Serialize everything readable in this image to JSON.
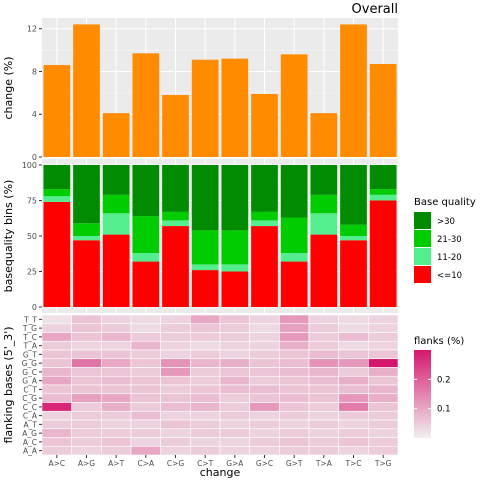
{
  "chart_data": [
    {
      "type": "bar",
      "title": "Overall",
      "xlabel": "",
      "ylabel": "change (%)",
      "ylim": [
        0,
        13
      ],
      "yticks": [
        0,
        4,
        8,
        12
      ],
      "grid": true,
      "bar_color": "#ff8c00",
      "categories": [
        "A>C",
        "A>G",
        "A>T",
        "C>A",
        "C>G",
        "C>T",
        "G>A",
        "G>C",
        "G>T",
        "T>A",
        "T>C",
        "T>G"
      ],
      "values": [
        8.6,
        12.4,
        4.1,
        9.7,
        5.8,
        9.1,
        9.2,
        5.9,
        9.6,
        4.1,
        12.4,
        8.7
      ]
    },
    {
      "type": "bar",
      "stacked": true,
      "xlabel": "",
      "ylabel": "basequality bins (%)",
      "ylim": [
        0,
        100
      ],
      "yticks": [
        0,
        25,
        50,
        75,
        100
      ],
      "grid": true,
      "legend_title": "Base quality",
      "legend_position": "right",
      "categories": [
        "A>C",
        "A>G",
        "A>T",
        "C>A",
        "C>G",
        "C>T",
        "G>A",
        "G>C",
        "G>T",
        "T>A",
        "T>C",
        "T>G"
      ],
      "series": [
        {
          "name": "<=10",
          "color": "#ff0000",
          "values": [
            74,
            47,
            51,
            32,
            57,
            26,
            25,
            57,
            32,
            51,
            47,
            75
          ]
        },
        {
          "name": "11-20",
          "color": "#54ee8f",
          "values": [
            4,
            3,
            15,
            6,
            4,
            4,
            5,
            4,
            6,
            15,
            3,
            4
          ]
        },
        {
          "name": "21-30",
          "color": "#00cc00",
          "values": [
            5,
            9,
            13,
            26,
            6,
            24,
            24,
            6,
            25,
            13,
            8,
            4
          ]
        },
        {
          "name": ">30",
          "color": "#008b00",
          "values": [
            17,
            41,
            21,
            36,
            33,
            46,
            46,
            33,
            37,
            21,
            42,
            17
          ]
        }
      ]
    },
    {
      "type": "heatmap",
      "xlabel": "change",
      "ylabel": "flanking bases (5'_3')",
      "legend_title": "flanks  (%)",
      "legend_position": "right",
      "legend_ticks": [
        0.1,
        0.2
      ],
      "value_range": [
        0,
        0.3
      ],
      "color_low": "#f0f0f0",
      "color_high": "#d6166e",
      "x_categories": [
        "A>C",
        "A>G",
        "A>T",
        "C>A",
        "C>G",
        "C>T",
        "G>A",
        "G>C",
        "G>T",
        "T>A",
        "T>C",
        "T>G"
      ],
      "y_categories": [
        "T_T",
        "T_G",
        "T_C",
        "T_A",
        "G_T",
        "G_G",
        "G_C",
        "G_A",
        "C_T",
        "C_G",
        "C_C",
        "C_A",
        "A_T",
        "A_G",
        "A_C",
        "A_A"
      ],
      "values": [
        [
          0.02,
          0.06,
          0.04,
          0.03,
          0.04,
          0.1,
          0.06,
          0.04,
          0.12,
          0.04,
          0.03,
          0.04
        ],
        [
          0.04,
          0.06,
          0.05,
          0.03,
          0.05,
          0.06,
          0.05,
          0.03,
          0.11,
          0.05,
          0.03,
          0.04
        ],
        [
          0.1,
          0.06,
          0.08,
          0.05,
          0.05,
          0.05,
          0.05,
          0.04,
          0.12,
          0.05,
          0.07,
          0.05
        ],
        [
          0.05,
          0.04,
          0.04,
          0.08,
          0.04,
          0.03,
          0.04,
          0.04,
          0.09,
          0.05,
          0.03,
          0.04
        ],
        [
          0.06,
          0.06,
          0.06,
          0.05,
          0.04,
          0.05,
          0.04,
          0.05,
          0.06,
          0.07,
          0.06,
          0.06
        ],
        [
          0.06,
          0.17,
          0.1,
          0.06,
          0.13,
          0.08,
          0.09,
          0.06,
          0.07,
          0.13,
          0.12,
          0.3
        ],
        [
          0.08,
          0.06,
          0.06,
          0.05,
          0.12,
          0.05,
          0.06,
          0.06,
          0.07,
          0.08,
          0.05,
          0.09
        ],
        [
          0.1,
          0.06,
          0.07,
          0.06,
          0.06,
          0.05,
          0.08,
          0.05,
          0.06,
          0.07,
          0.09,
          0.06
        ],
        [
          0.06,
          0.06,
          0.06,
          0.06,
          0.05,
          0.06,
          0.07,
          0.07,
          0.06,
          0.06,
          0.07,
          0.08
        ],
        [
          0.07,
          0.11,
          0.1,
          0.06,
          0.06,
          0.07,
          0.05,
          0.06,
          0.07,
          0.06,
          0.12,
          0.09
        ],
        [
          0.28,
          0.05,
          0.09,
          0.05,
          0.07,
          0.08,
          0.05,
          0.12,
          0.06,
          0.05,
          0.16,
          0.06
        ],
        [
          0.04,
          0.05,
          0.05,
          0.07,
          0.04,
          0.04,
          0.05,
          0.04,
          0.05,
          0.04,
          0.05,
          0.05
        ],
        [
          0.05,
          0.05,
          0.04,
          0.04,
          0.06,
          0.05,
          0.04,
          0.05,
          0.04,
          0.05,
          0.04,
          0.05
        ],
        [
          0.08,
          0.05,
          0.05,
          0.05,
          0.04,
          0.05,
          0.05,
          0.04,
          0.05,
          0.04,
          0.05,
          0.04
        ],
        [
          0.06,
          0.05,
          0.06,
          0.04,
          0.05,
          0.04,
          0.04,
          0.05,
          0.06,
          0.05,
          0.06,
          0.05
        ],
        [
          0.05,
          0.04,
          0.05,
          0.1,
          0.04,
          0.05,
          0.04,
          0.04,
          0.05,
          0.05,
          0.04,
          0.05
        ]
      ]
    }
  ]
}
